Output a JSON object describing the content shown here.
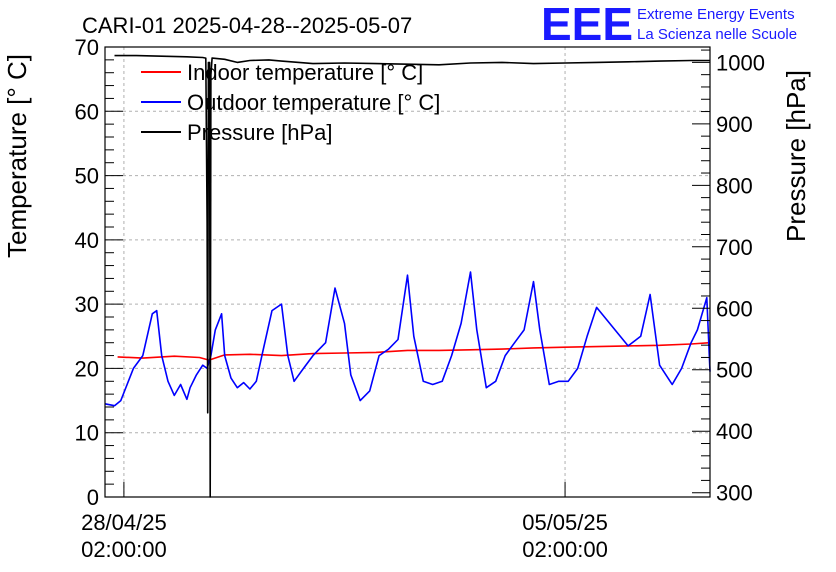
{
  "chart_data": {
    "type": "line",
    "title": "CARI-01 2025-04-28--2025-05-07",
    "ylabel_left": "Temperature [° C]",
    "ylabel_right": "Pressure [hPa]",
    "ylim_left": [
      0,
      70
    ],
    "ylim_right": [
      293,
      1025
    ],
    "yticks_left": [
      "0",
      "10",
      "20",
      "30",
      "40",
      "50",
      "60",
      "70"
    ],
    "yticks_right": [
      "300",
      "400",
      "500",
      "600",
      "700",
      "800",
      "900",
      "1000"
    ],
    "xlim": [
      -0.3,
      9.3
    ],
    "xticks": [
      {
        "pos": 0,
        "line1": "28/04/25",
        "line2": "02:00:00"
      },
      {
        "pos": 7,
        "line1": "05/05/25",
        "line2": "02:00:00"
      }
    ],
    "grid": true,
    "legend": [
      {
        "label": "Indoor temperature [° C]",
        "color": "#ff0000"
      },
      {
        "label": "Outdoor temperature [° C]",
        "color": "#0000ff"
      },
      {
        "label": "Pressure [hPa]",
        "color": "#000000"
      }
    ],
    "series": [
      {
        "name": "Indoor temperature [° C]",
        "axis": "left",
        "color": "#ff0000",
        "x": [
          -0.1,
          0.3,
          0.8,
          1.2,
          1.35,
          1.6,
          2.0,
          2.5,
          3.0,
          3.5,
          4.0,
          4.5,
          5.0,
          5.5,
          6.0,
          6.5,
          7.0,
          7.5,
          8.0,
          8.5,
          9.0,
          9.4
        ],
        "y": [
          21.8,
          21.6,
          21.9,
          21.7,
          21.3,
          22.1,
          22.2,
          22.0,
          22.3,
          22.4,
          22.5,
          22.8,
          22.8,
          22.9,
          23.0,
          23.2,
          23.3,
          23.4,
          23.5,
          23.6,
          23.8,
          24.0
        ]
      },
      {
        "name": "Outdoor temperature [° C]",
        "axis": "left",
        "color": "#0000ff",
        "x": [
          -0.3,
          -0.15,
          -0.05,
          0.05,
          0.15,
          0.3,
          0.45,
          0.52,
          0.6,
          0.7,
          0.8,
          0.9,
          1.0,
          1.05,
          1.15,
          1.25,
          1.32,
          1.38,
          1.45,
          1.55,
          1.6,
          1.7,
          1.8,
          1.9,
          2.0,
          2.1,
          2.2,
          2.35,
          2.5,
          2.6,
          2.7,
          2.85,
          3.0,
          3.2,
          3.35,
          3.5,
          3.6,
          3.75,
          3.9,
          4.05,
          4.2,
          4.35,
          4.5,
          4.6,
          4.75,
          4.9,
          5.05,
          5.2,
          5.35,
          5.5,
          5.6,
          5.75,
          5.9,
          6.05,
          6.2,
          6.35,
          6.5,
          6.6,
          6.75,
          6.9,
          7.05,
          7.2,
          7.35,
          7.5,
          8.0,
          8.2,
          8.35,
          8.5,
          8.7,
          8.85,
          9.0,
          9.1,
          9.25,
          9.4
        ],
        "y": [
          14.5,
          14.2,
          15.0,
          17.5,
          20.0,
          22.0,
          28.5,
          29.0,
          22.0,
          18.0,
          15.8,
          17.5,
          15.2,
          17.0,
          19.0,
          20.5,
          20.0,
          22.0,
          26.0,
          28.5,
          22.0,
          18.5,
          17.0,
          17.8,
          16.8,
          18.0,
          22.5,
          29.0,
          30.0,
          22.0,
          18.0,
          20.0,
          22.0,
          24.0,
          32.5,
          27.0,
          19.0,
          15.0,
          16.5,
          22.0,
          23.0,
          24.5,
          34.5,
          25.0,
          18.0,
          17.5,
          18.0,
          22.0,
          27.0,
          35.0,
          26.0,
          17.0,
          18.0,
          22.0,
          24.0,
          26.0,
          33.5,
          26.0,
          17.5,
          18.0,
          18.0,
          20.0,
          25.0,
          29.5,
          23.5,
          25.0,
          31.5,
          20.5,
          17.5,
          20.0,
          24.0,
          26.0,
          31.0,
          19.5
        ]
      },
      {
        "name": "Pressure [hPa]",
        "axis": "right",
        "color": "#000000",
        "x": [
          -0.15,
          0.2,
          0.6,
          1.0,
          1.25,
          1.3,
          1.32,
          1.33,
          1.34,
          1.35,
          1.36,
          1.37,
          1.38,
          1.4,
          1.6,
          1.8,
          2.0,
          2.3,
          2.5,
          3.0,
          3.5,
          4.0,
          4.5,
          5.0,
          5.5,
          6.0,
          6.5,
          7.0,
          7.5,
          8.0,
          8.5,
          9.0,
          9.4
        ],
        "y": [
          1011,
          1011,
          1010,
          1009,
          1008,
          1007,
          740,
          430,
          1000,
          900,
          1000,
          293,
          980,
          1007,
          1005,
          1000,
          1003,
          1004,
          1002,
          998,
          999,
          998,
          997,
          996,
          999,
          1000,
          998,
          999,
          1000,
          1001,
          1002,
          1003,
          1003
        ]
      }
    ]
  },
  "logo": {
    "letters": "EEE",
    "line1": "Extreme Energy Events",
    "line2": "La Scienza nelle Scuole"
  }
}
